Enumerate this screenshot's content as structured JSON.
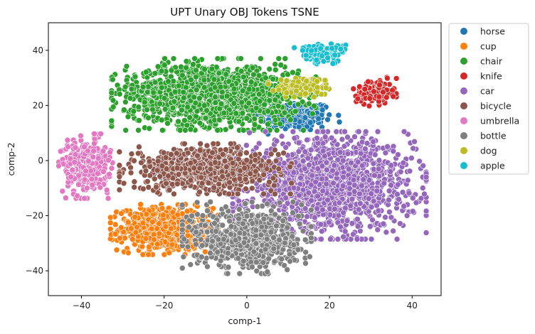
{
  "chart_data": {
    "type": "scatter",
    "title": "UPT Unary OBJ Tokens TSNE",
    "xlabel": "comp-1",
    "ylabel": "comp-2",
    "xlim": [
      -48,
      47
    ],
    "ylim": [
      -49,
      50
    ],
    "xticks": [
      -40,
      -20,
      0,
      20,
      40
    ],
    "yticks": [
      -40,
      -20,
      0,
      20,
      40
    ],
    "grid": false,
    "legend_position": "outside-right-top",
    "series": [
      {
        "name": "horse",
        "color": "#1f77b4",
        "center": [
          12,
          16
        ],
        "spread": [
          8,
          5
        ],
        "count": 220
      },
      {
        "name": "cup",
        "color": "#ff7f0e",
        "center": [
          -20,
          -25
        ],
        "spread": [
          10,
          7
        ],
        "count": 600
      },
      {
        "name": "chair",
        "color": "#2ca02c",
        "center": [
          -8,
          24
        ],
        "spread": [
          19,
          10
        ],
        "count": 1400
      },
      {
        "name": "knife",
        "color": "#d62728",
        "center": [
          31,
          25
        ],
        "spread": [
          4,
          4
        ],
        "count": 120
      },
      {
        "name": "car",
        "color": "#9467bd",
        "center": [
          20,
          -9
        ],
        "spread": [
          18,
          15
        ],
        "count": 1400
      },
      {
        "name": "bicycle",
        "color": "#8c564b",
        "center": [
          -10,
          -3
        ],
        "spread": [
          16,
          7
        ],
        "count": 700
      },
      {
        "name": "umbrella",
        "color": "#e377c2",
        "center": [
          -39,
          -2
        ],
        "spread": [
          5,
          9
        ],
        "count": 300
      },
      {
        "name": "bottle",
        "color": "#7f7f7f",
        "center": [
          0,
          -28
        ],
        "spread": [
          12,
          10
        ],
        "count": 700
      },
      {
        "name": "dog",
        "color": "#bcbd22",
        "center": [
          13,
          27
        ],
        "spread": [
          6,
          3
        ],
        "count": 120
      },
      {
        "name": "apple",
        "color": "#17becf",
        "center": [
          18,
          39
        ],
        "spread": [
          5,
          3
        ],
        "count": 120
      }
    ]
  }
}
